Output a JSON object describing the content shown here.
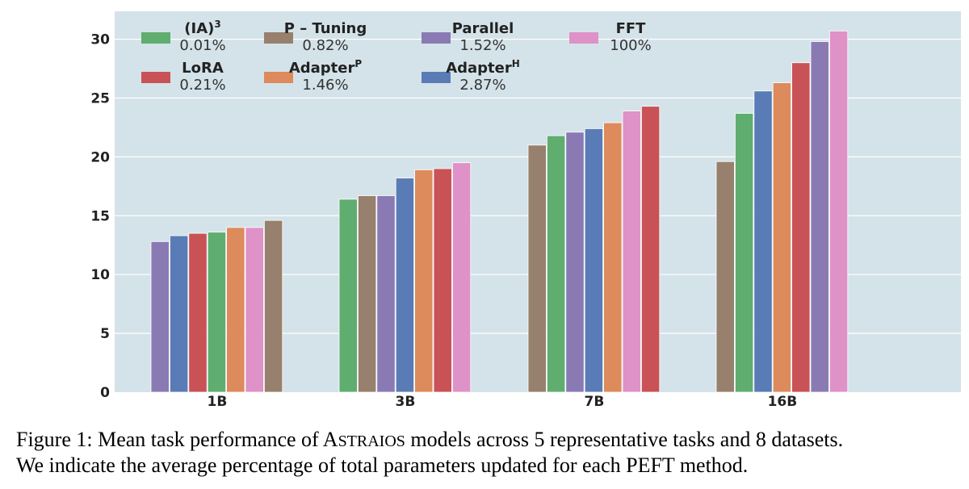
{
  "chart_data": {
    "type": "bar",
    "categories": [
      "1B",
      "3B",
      "7B",
      "16B"
    ],
    "yticks": [
      "0",
      "5",
      "10",
      "15",
      "20",
      "25",
      "30"
    ],
    "ylim": [
      0,
      32
    ],
    "grid": true,
    "legend_position": "top",
    "colors": {
      "IA3": "#5fad6f",
      "LoRA": "#c85256",
      "PTuning": "#97806d",
      "AdapterP": "#dd8a5c",
      "Parallel": "#8a7ab4",
      "AdapterH": "#5a7cb6",
      "FFT": "#de92c7",
      "background": "#d4e3e9"
    },
    "legend": [
      {
        "key": "IA3",
        "name_base": "(IA)",
        "name_sup": "3",
        "pct": "0.01%"
      },
      {
        "key": "LoRA",
        "name_base": "LoRA",
        "name_sup": "",
        "pct": "0.21%"
      },
      {
        "key": "PTuning",
        "name_base": "P – Tuning",
        "name_sup": "",
        "pct": "0.82%"
      },
      {
        "key": "AdapterP",
        "name_base": "Adapter",
        "name_sup": "P",
        "pct": "1.46%"
      },
      {
        "key": "Parallel",
        "name_base": "Parallel",
        "name_sup": "",
        "pct": "1.52%"
      },
      {
        "key": "AdapterH",
        "name_base": "Adapter",
        "name_sup": "H",
        "pct": "2.87%"
      },
      {
        "key": "FFT",
        "name_base": "FFT",
        "name_sup": "",
        "pct": "100%"
      }
    ],
    "groups": [
      {
        "category": "1B",
        "bars": [
          {
            "series": "Parallel",
            "value": 12.8
          },
          {
            "series": "AdapterH",
            "value": 13.3
          },
          {
            "series": "LoRA",
            "value": 13.5
          },
          {
            "series": "IA3",
            "value": 13.6
          },
          {
            "series": "AdapterP",
            "value": 14.0
          },
          {
            "series": "FFT",
            "value": 14.0
          },
          {
            "series": "PTuning",
            "value": 14.6
          }
        ]
      },
      {
        "category": "3B",
        "bars": [
          {
            "series": "IA3",
            "value": 16.4
          },
          {
            "series": "PTuning",
            "value": 16.7
          },
          {
            "series": "Parallel",
            "value": 16.7
          },
          {
            "series": "AdapterH",
            "value": 18.2
          },
          {
            "series": "AdapterP",
            "value": 18.9
          },
          {
            "series": "LoRA",
            "value": 19.0
          },
          {
            "series": "FFT",
            "value": 19.5
          }
        ]
      },
      {
        "category": "7B",
        "bars": [
          {
            "series": "PTuning",
            "value": 21.0
          },
          {
            "series": "IA3",
            "value": 21.8
          },
          {
            "series": "Parallel",
            "value": 22.1
          },
          {
            "series": "AdapterH",
            "value": 22.4
          },
          {
            "series": "AdapterP",
            "value": 22.9
          },
          {
            "series": "FFT",
            "value": 23.9
          },
          {
            "series": "LoRA",
            "value": 24.3
          }
        ]
      },
      {
        "category": "16B",
        "bars": [
          {
            "series": "PTuning",
            "value": 19.6
          },
          {
            "series": "IA3",
            "value": 23.7
          },
          {
            "series": "AdapterH",
            "value": 25.6
          },
          {
            "series": "AdapterP",
            "value": 26.3
          },
          {
            "series": "LoRA",
            "value": 28.0
          },
          {
            "series": "Parallel",
            "value": 29.8
          },
          {
            "series": "FFT",
            "value": 30.7
          }
        ]
      }
    ]
  },
  "caption": {
    "line1_prefix": "Figure 1: Mean task performance of ",
    "model_first": "A",
    "model_rest": "STRAIOS",
    "line1_suffix": " models across 5 representative tasks and 8 datasets.",
    "line2": "We indicate the average percentage of total parameters updated for each PEFT method."
  }
}
